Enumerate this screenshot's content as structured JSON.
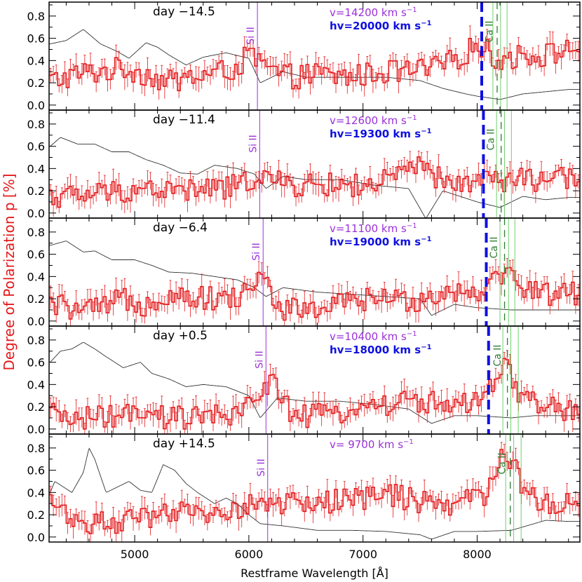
{
  "figure": {
    "ylabel": "Degree of Polarization p [%]",
    "xlabel": "Restframe Wavelength [Å]",
    "xlim": [
      4250,
      8900
    ],
    "xticks": [
      5000,
      6000,
      7000,
      8000
    ],
    "ylim": [
      -0.02,
      0.9
    ],
    "yticks": [
      "0.0",
      "0.2",
      "0.4",
      "0.6",
      "0.8"
    ],
    "colors": {
      "polarization": "#e41a1c",
      "flux": "#333333",
      "si_line": "#9b30d9",
      "velocity_text": "#9b30d9",
      "hv_line": "#1010e0",
      "ca_lines": "#2e7d32",
      "ca_green": "#6fd06f",
      "ylabel": "#e41a1c"
    }
  },
  "chart_data": [
    {
      "type": "line",
      "day_label": "day −14.5",
      "velocity_label": "v=14200 km s",
      "hv_label": "hv=20000 km s",
      "si_label": "Si II",
      "ca_label": "Ca II",
      "si_wavelength": 6075,
      "ca_text_wavelength": 8050,
      "hv_wavelength": 8040,
      "ca_dash_wavelength": 8175,
      "ca_solid_wavelengths": [
        8138,
        8205,
        8262
      ],
      "polarization_points": [
        [
          4300,
          0.22
        ],
        [
          4500,
          0.28
        ],
        [
          4700,
          0.3
        ],
        [
          4900,
          0.33
        ],
        [
          5100,
          0.28
        ],
        [
          5300,
          0.2
        ],
        [
          5500,
          0.25
        ],
        [
          5700,
          0.28
        ],
        [
          5900,
          0.34
        ],
        [
          6000,
          0.45
        ],
        [
          6200,
          0.3
        ],
        [
          6400,
          0.25
        ],
        [
          6600,
          0.28
        ],
        [
          6800,
          0.25
        ],
        [
          7000,
          0.27
        ],
        [
          7200,
          0.3
        ],
        [
          7400,
          0.3
        ],
        [
          7600,
          0.32
        ],
        [
          7800,
          0.4
        ],
        [
          8000,
          0.55
        ],
        [
          8200,
          0.4
        ],
        [
          8400,
          0.45
        ],
        [
          8600,
          0.45
        ],
        [
          8800,
          0.5
        ]
      ],
      "flux_points": [
        [
          4260,
          0.55
        ],
        [
          4400,
          0.58
        ],
        [
          4550,
          0.68
        ],
        [
          4700,
          0.55
        ],
        [
          4850,
          0.48
        ],
        [
          4950,
          0.42
        ],
        [
          5100,
          0.56
        ],
        [
          5200,
          0.52
        ],
        [
          5300,
          0.45
        ],
        [
          5450,
          0.36
        ],
        [
          5600,
          0.43
        ],
        [
          5800,
          0.47
        ],
        [
          6000,
          0.42
        ],
        [
          6100,
          0.2
        ],
        [
          6300,
          0.3
        ],
        [
          6500,
          0.25
        ],
        [
          6800,
          0.25
        ],
        [
          7200,
          0.25
        ],
        [
          7500,
          0.22
        ],
        [
          7700,
          0.15
        ],
        [
          7900,
          0.1
        ],
        [
          8000,
          0.08
        ],
        [
          8200,
          0.05
        ],
        [
          8400,
          0.1
        ],
        [
          8600,
          0.12
        ],
        [
          8800,
          0.14
        ]
      ]
    },
    {
      "type": "line",
      "day_label": "day −11.4",
      "velocity_label": "v=12600 km s",
      "hv_label": "hv=19300 km s",
      "si_label": "Si II",
      "ca_label": "Ca II",
      "si_wavelength": 6095,
      "ca_text_wavelength": 8060,
      "hv_wavelength": 8055,
      "ca_dash_wavelength": 8210,
      "ca_solid_wavelengths": [
        8170,
        8240,
        8300
      ],
      "polarization_points": [
        [
          4300,
          0.15
        ],
        [
          4500,
          0.15
        ],
        [
          4700,
          0.18
        ],
        [
          4900,
          0.2
        ],
        [
          5100,
          0.22
        ],
        [
          5300,
          0.2
        ],
        [
          5500,
          0.2
        ],
        [
          5700,
          0.22
        ],
        [
          5900,
          0.24
        ],
        [
          6100,
          0.35
        ],
        [
          6300,
          0.25
        ],
        [
          6500,
          0.25
        ],
        [
          6700,
          0.25
        ],
        [
          6900,
          0.25
        ],
        [
          7100,
          0.25
        ],
        [
          7300,
          0.32
        ],
        [
          7450,
          0.42
        ],
        [
          7600,
          0.35
        ],
        [
          7800,
          0.22
        ],
        [
          8000,
          0.32
        ],
        [
          8200,
          0.28
        ],
        [
          8400,
          0.3
        ],
        [
          8600,
          0.3
        ],
        [
          8800,
          0.3
        ]
      ],
      "flux_points": [
        [
          4260,
          0.6
        ],
        [
          4350,
          0.68
        ],
        [
          4500,
          0.62
        ],
        [
          4650,
          0.62
        ],
        [
          4800,
          0.55
        ],
        [
          4950,
          0.55
        ],
        [
          5100,
          0.48
        ],
        [
          5250,
          0.43
        ],
        [
          5400,
          0.36
        ],
        [
          5550,
          0.35
        ],
        [
          5700,
          0.43
        ],
        [
          5900,
          0.4
        ],
        [
          6050,
          0.35
        ],
        [
          6150,
          0.22
        ],
        [
          6300,
          0.33
        ],
        [
          6500,
          0.3
        ],
        [
          6800,
          0.3
        ],
        [
          7100,
          0.25
        ],
        [
          7400,
          0.22
        ],
        [
          7550,
          -0.05
        ],
        [
          7700,
          0.2
        ],
        [
          8000,
          0.1
        ],
        [
          8200,
          0.05
        ],
        [
          8400,
          0.15
        ],
        [
          8600,
          0.12
        ],
        [
          8800,
          0.14
        ]
      ]
    },
    {
      "type": "line",
      "day_label": "day −6.4",
      "velocity_label": "v=11100 km s",
      "hv_label": "hv=19000 km s",
      "si_label": "Si II",
      "ca_label": "Ca II",
      "si_wavelength": 6125,
      "ca_text_wavelength": 8090,
      "hv_wavelength": 8080,
      "ca_dash_wavelength": 8240,
      "ca_solid_wavelengths": [
        8200,
        8275,
        8330
      ],
      "polarization_points": [
        [
          4300,
          0.15
        ],
        [
          4500,
          0.1
        ],
        [
          4700,
          0.1
        ],
        [
          4900,
          0.2
        ],
        [
          5100,
          0.15
        ],
        [
          5300,
          0.25
        ],
        [
          5500,
          0.22
        ],
        [
          5700,
          0.2
        ],
        [
          5900,
          0.2
        ],
        [
          6100,
          0.4
        ],
        [
          6300,
          0.1
        ],
        [
          6500,
          0.1
        ],
        [
          6700,
          0.12
        ],
        [
          6900,
          0.18
        ],
        [
          7100,
          0.2
        ],
        [
          7300,
          0.18
        ],
        [
          7500,
          0.2
        ],
        [
          7700,
          0.25
        ],
        [
          7900,
          0.28
        ],
        [
          8100,
          0.3
        ],
        [
          8200,
          0.45
        ],
        [
          8400,
          0.32
        ],
        [
          8600,
          0.25
        ],
        [
          8800,
          0.25
        ]
      ],
      "flux_points": [
        [
          4260,
          0.68
        ],
        [
          4400,
          0.72
        ],
        [
          4550,
          0.62
        ],
        [
          4650,
          0.63
        ],
        [
          4800,
          0.55
        ],
        [
          5000,
          0.55
        ],
        [
          5150,
          0.5
        ],
        [
          5300,
          0.44
        ],
        [
          5500,
          0.43
        ],
        [
          5700,
          0.4
        ],
        [
          5900,
          0.37
        ],
        [
          6050,
          0.3
        ],
        [
          6150,
          0.22
        ],
        [
          6300,
          0.3
        ],
        [
          6600,
          0.26
        ],
        [
          6900,
          0.24
        ],
        [
          7200,
          0.22
        ],
        [
          7500,
          0.2
        ],
        [
          7600,
          0.05
        ],
        [
          7800,
          0.15
        ],
        [
          8000,
          0.12
        ],
        [
          8300,
          0.1
        ],
        [
          8500,
          0.1
        ],
        [
          8800,
          0.1
        ]
      ]
    },
    {
      "type": "line",
      "day_label": "day +0.5",
      "velocity_label": "v=10400 km s",
      "hv_label": "hv=18000 km s",
      "si_label": "Si II",
      "ca_label": "Ca II",
      "si_wavelength": 6150,
      "ca_text_wavelength": 8120,
      "hv_wavelength": 8100,
      "ca_dash_wavelength": 8265,
      "ca_solid_wavelengths": [
        8225,
        8295,
        8360
      ],
      "polarization_points": [
        [
          4300,
          0.12
        ],
        [
          4500,
          0.1
        ],
        [
          4700,
          0.1
        ],
        [
          4900,
          0.12
        ],
        [
          5100,
          0.1
        ],
        [
          5300,
          0.1
        ],
        [
          5500,
          0.1
        ],
        [
          5700,
          0.12
        ],
        [
          5900,
          0.1
        ],
        [
          6100,
          0.35
        ],
        [
          6200,
          0.45
        ],
        [
          6400,
          0.1
        ],
        [
          6600,
          0.12
        ],
        [
          6800,
          0.15
        ],
        [
          7000,
          0.2
        ],
        [
          7200,
          0.22
        ],
        [
          7400,
          0.25
        ],
        [
          7600,
          0.25
        ],
        [
          7800,
          0.2
        ],
        [
          8000,
          0.22
        ],
        [
          8250,
          0.55
        ],
        [
          8400,
          0.25
        ],
        [
          8600,
          0.22
        ],
        [
          8800,
          0.15
        ]
      ],
      "flux_points": [
        [
          4260,
          0.6
        ],
        [
          4350,
          0.7
        ],
        [
          4450,
          0.72
        ],
        [
          4550,
          0.78
        ],
        [
          4650,
          0.72
        ],
        [
          4750,
          0.65
        ],
        [
          4900,
          0.55
        ],
        [
          5050,
          0.6
        ],
        [
          5150,
          0.5
        ],
        [
          5300,
          0.45
        ],
        [
          5450,
          0.38
        ],
        [
          5600,
          0.4
        ],
        [
          5800,
          0.38
        ],
        [
          6000,
          0.3
        ],
        [
          6100,
          0.1
        ],
        [
          6250,
          0.28
        ],
        [
          6500,
          0.25
        ],
        [
          6800,
          0.25
        ],
        [
          7100,
          0.22
        ],
        [
          7400,
          0.18
        ],
        [
          7600,
          0.05
        ],
        [
          7800,
          0.12
        ],
        [
          8000,
          0.12
        ],
        [
          8300,
          0.1
        ],
        [
          8500,
          0.12
        ],
        [
          8800,
          0.12
        ]
      ]
    },
    {
      "type": "line",
      "day_label": "day +14.5",
      "velocity_label": "v=  9700 km s",
      "hv_label": "",
      "si_label": "Si II",
      "ca_label": "Ca II",
      "si_wavelength": 6165,
      "ca_text_wavelength": 8160,
      "hv_wavelength": null,
      "ca_dash_wavelength": 8290,
      "ca_solid_wavelengths": [
        8250,
        8320,
        8385
      ],
      "polarization_points": [
        [
          4300,
          0.3
        ],
        [
          4500,
          0.15
        ],
        [
          4700,
          0.12
        ],
        [
          4900,
          0.15
        ],
        [
          5100,
          0.15
        ],
        [
          5300,
          0.2
        ],
        [
          5500,
          0.22
        ],
        [
          5700,
          0.22
        ],
        [
          5900,
          0.25
        ],
        [
          6100,
          0.3
        ],
        [
          6300,
          0.3
        ],
        [
          6500,
          0.3
        ],
        [
          6700,
          0.32
        ],
        [
          6900,
          0.35
        ],
        [
          7100,
          0.35
        ],
        [
          7300,
          0.38
        ],
        [
          7500,
          0.3
        ],
        [
          7700,
          0.3
        ],
        [
          7900,
          0.32
        ],
        [
          8100,
          0.4
        ],
        [
          8250,
          0.8
        ],
        [
          8400,
          0.45
        ],
        [
          8600,
          0.3
        ],
        [
          8800,
          0.3
        ]
      ],
      "flux_points": [
        [
          4260,
          0.4
        ],
        [
          4300,
          0.5
        ],
        [
          4450,
          0.4
        ],
        [
          4550,
          0.58
        ],
        [
          4600,
          0.8
        ],
        [
          4650,
          0.7
        ],
        [
          4750,
          0.4
        ],
        [
          4850,
          0.45
        ],
        [
          4950,
          0.5
        ],
        [
          5050,
          0.42
        ],
        [
          5150,
          0.4
        ],
        [
          5250,
          0.65
        ],
        [
          5350,
          0.6
        ],
        [
          5450,
          0.48
        ],
        [
          5550,
          0.4
        ],
        [
          5700,
          0.3
        ],
        [
          5800,
          0.35
        ],
        [
          5900,
          0.3
        ],
        [
          6000,
          0.2
        ],
        [
          6100,
          0.12
        ],
        [
          6300,
          0.1
        ],
        [
          6600,
          0.06
        ],
        [
          6900,
          0.06
        ],
        [
          7200,
          0.05
        ],
        [
          7500,
          0.02
        ],
        [
          7600,
          -0.02
        ],
        [
          7800,
          0.05
        ],
        [
          8000,
          0.05
        ],
        [
          8300,
          0.06
        ],
        [
          8600,
          0.15
        ],
        [
          8800,
          0.14
        ]
      ]
    }
  ]
}
